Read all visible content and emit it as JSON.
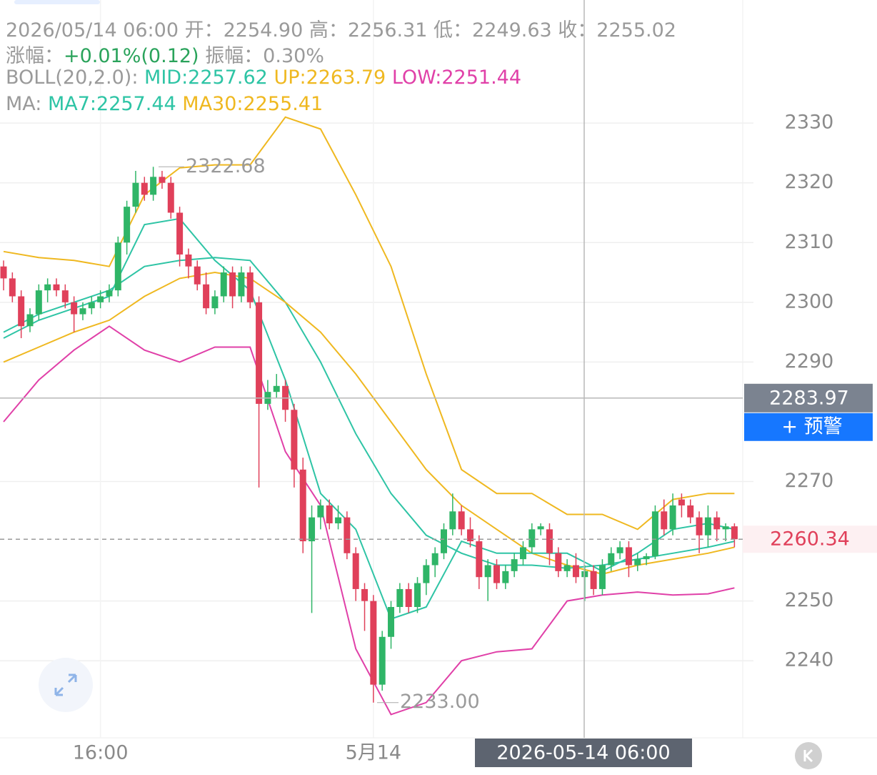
{
  "header": {
    "line1": "2026/05/14 06:00 开：2254.90 高：2256.31 低：2249.63 收：2255.02",
    "change_label": "涨幅：",
    "change": "+0.01%(0.12)",
    "amplitude": "振幅：0.30%",
    "boll": "BOLL(20,2.0):",
    "mid": "MID:2257.62",
    "up": "UP:2263.79",
    "low": "LOW:2251.44",
    "ma": "MA:",
    "ma7": "MA7:2257.44",
    "ma30": "MA30:2255.41"
  },
  "chart_data": {
    "type": "candlestick",
    "categories": [
      null,
      null,
      null,
      null,
      null,
      null,
      null,
      null,
      null,
      null,
      null,
      "16:00",
      null,
      null,
      null,
      null,
      null,
      null,
      null,
      null,
      null,
      null,
      null,
      null,
      null,
      null,
      null,
      null,
      null,
      null,
      null,
      null,
      null,
      null,
      null,
      null,
      null,
      null,
      null,
      null,
      null,
      null,
      "5月14",
      null,
      null,
      null,
      null,
      null,
      null,
      null,
      null,
      null,
      null,
      null,
      null,
      null,
      null,
      null,
      null,
      null,
      null,
      null,
      null,
      null,
      null,
      null,
      null,
      null,
      null,
      null,
      null,
      null,
      null,
      null,
      null,
      null,
      null,
      null,
      null,
      null,
      null,
      null,
      null,
      null
    ],
    "candles": [
      [
        2306,
        2307,
        2302,
        2304
      ],
      [
        2304,
        2305,
        2300,
        2301
      ],
      [
        2301,
        2302,
        2294,
        2296
      ],
      [
        2296,
        2299,
        2295,
        2298
      ],
      [
        2298,
        2303,
        2297,
        2302
      ],
      [
        2302,
        2304,
        2300,
        2303
      ],
      [
        2303,
        2304,
        2301,
        2302
      ],
      [
        2302,
        2303,
        2299,
        2300
      ],
      [
        2300,
        2301,
        2295,
        2298
      ],
      [
        2298,
        2300,
        2297,
        2299
      ],
      [
        2299,
        2301,
        2298,
        2300
      ],
      [
        2300,
        2302,
        2299,
        2301
      ],
      [
        2301,
        2303,
        2300,
        2302
      ],
      [
        2302,
        2311,
        2301,
        2310
      ],
      [
        2310,
        2317,
        2308,
        2316
      ],
      [
        2316,
        2322,
        2315,
        2320
      ],
      [
        2320,
        2321,
        2317,
        2318
      ],
      [
        2318,
        2322.68,
        2317,
        2321
      ],
      [
        2321,
        2322,
        2319,
        2320
      ],
      [
        2320,
        2321,
        2314,
        2315
      ],
      [
        2315,
        2316,
        2306,
        2308
      ],
      [
        2308,
        2309,
        2304,
        2306
      ],
      [
        2306,
        2307,
        2302,
        2303
      ],
      [
        2303,
        2305,
        2298,
        2299
      ],
      [
        2299,
        2302,
        2298,
        2301
      ],
      [
        2301,
        2306,
        2300,
        2305
      ],
      [
        2305,
        2306,
        2299,
        2301
      ],
      [
        2301,
        2306,
        2300,
        2305
      ],
      [
        2305,
        2306,
        2299,
        2300
      ],
      [
        2300,
        2301,
        2269,
        2283
      ],
      [
        2283,
        2287,
        2282,
        2285
      ],
      [
        2285,
        2288,
        2284,
        2286
      ],
      [
        2286,
        2287,
        2280,
        2282
      ],
      [
        2282,
        2283,
        2269,
        2272
      ],
      [
        2272,
        2274,
        2258,
        2260
      ],
      [
        2260,
        2266,
        2248,
        2264
      ],
      [
        2264,
        2267,
        2262,
        2266
      ],
      [
        2266,
        2267,
        2262,
        2263
      ],
      [
        2263,
        2266,
        2262,
        2264
      ],
      [
        2264,
        2265,
        2257,
        2258
      ],
      [
        2258,
        2259,
        2250,
        2252
      ],
      [
        2252,
        2253,
        2245,
        2250
      ],
      [
        2250,
        2251,
        2233,
        2236
      ],
      [
        2236,
        2245,
        2235,
        2244
      ],
      [
        2244,
        2250,
        2242,
        2249
      ],
      [
        2249,
        2253,
        2248,
        2252
      ],
      [
        2252,
        2253,
        2248,
        2249
      ],
      [
        2249,
        2254,
        2248,
        2253
      ],
      [
        2253,
        2257,
        2251,
        2256
      ],
      [
        2256,
        2259,
        2254,
        2258
      ],
      [
        2258,
        2263,
        2257,
        2262
      ],
      [
        2262,
        2268,
        2261,
        2265
      ],
      [
        2265,
        2266,
        2261,
        2262
      ],
      [
        2262,
        2264,
        2259,
        2260
      ],
      [
        2260,
        2261,
        2252,
        2254
      ],
      [
        2254,
        2257,
        2250,
        2256
      ],
      [
        2256,
        2257,
        2252,
        2253
      ],
      [
        2253,
        2256,
        2252,
        2255
      ],
      [
        2255,
        2258,
        2254,
        2257
      ],
      [
        2257,
        2260,
        2256,
        2259
      ],
      [
        2259,
        2263,
        2258,
        2262
      ],
      [
        2262,
        2263,
        2261,
        2262.5
      ],
      [
        2262,
        2263,
        2256,
        2258
      ],
      [
        2258,
        2259,
        2254,
        2255
      ],
      [
        2255,
        2257,
        2254,
        2256
      ],
      [
        2256,
        2258,
        2253,
        2254
      ],
      [
        2254,
        2256,
        2250,
        2255
      ],
      [
        2255,
        2256,
        2251,
        2252
      ],
      [
        2252,
        2257,
        2251,
        2256
      ],
      [
        2256,
        2259,
        2255,
        2258
      ],
      [
        2258,
        2260,
        2257,
        2259
      ],
      [
        2259,
        2260,
        2254,
        2256
      ],
      [
        2256,
        2258,
        2255,
        2257
      ],
      [
        2257,
        2258,
        2256,
        2257.5
      ],
      [
        2257.5,
        2266,
        2257,
        2265
      ],
      [
        2265,
        2267,
        2261,
        2262
      ],
      [
        2262,
        2268,
        2261,
        2266
      ],
      [
        2267,
        2268,
        2264,
        2266
      ],
      [
        2266,
        2267,
        2263,
        2264
      ],
      [
        2264,
        2265,
        2258,
        2261
      ],
      [
        2261,
        2266,
        2259,
        2264
      ],
      [
        2264,
        2265,
        2260,
        2262
      ],
      [
        2262,
        2263,
        2260,
        2262.5
      ],
      [
        2262.5,
        2263,
        2259,
        2260.34
      ]
    ],
    "up_color": "#2fb567",
    "down_color": "#e0405a",
    "line_index": [
      0,
      4,
      8,
      12,
      16,
      20,
      24,
      28,
      32,
      36,
      40,
      44,
      48,
      52,
      56,
      60,
      64,
      68,
      72,
      76,
      80,
      83
    ],
    "lines": [
      {
        "color": "#efb820",
        "values": [
          2308.5,
          2307.5,
          2307,
          2306,
          2318,
          2322.5,
          2323,
          2323,
          2331,
          2329,
          2318,
          2306,
          2288,
          2272,
          2268,
          2268,
          2264.5,
          2264.5,
          2262,
          2267,
          2268,
          2268
        ]
      },
      {
        "color": "#e040a8",
        "values": [
          2280,
          2287,
          2292,
          2296,
          2292,
          2290,
          2292.5,
          2292.5,
          2275,
          2266,
          2242,
          2231,
          2233,
          2240,
          2241.5,
          2242,
          2250,
          2251,
          2251.5,
          2251,
          2251.2,
          2252.2
        ]
      },
      {
        "color": "#2ec4a5",
        "values": [
          2295,
          2298,
          2300,
          2302,
          2306,
          2307,
          2307.5,
          2307,
          2300,
          2290,
          2278,
          2268,
          2261,
          2258,
          2256,
          2256,
          2255.5,
          2256,
          2257,
          2258,
          2259,
          2260
        ]
      },
      {
        "color": "#efb820",
        "values": [
          2290,
          2292.5,
          2295,
          2297,
          2301,
          2304,
          2305,
          2304,
          2300,
          2295,
          2288,
          2280,
          2272,
          2266,
          2262,
          2258,
          2256,
          2254.5,
          2256,
          2257,
          2258,
          2259
        ]
      },
      {
        "color": "#2ec4a5",
        "values": [
          2294,
          2297,
          2299,
          2301,
          2313,
          2314,
          2307,
          2302,
          2287,
          2268,
          2262,
          2247,
          2249,
          2260,
          2258,
          2258,
          2258,
          2255,
          2258,
          2262,
          2263,
          2262
        ]
      }
    ],
    "ylim": [
      2227.1,
      2350.6
    ],
    "yticks": [
      2240,
      2250,
      2270,
      2290,
      2300,
      2310,
      2320,
      2330
    ],
    "max_label": 2322.68,
    "min_label": {
      "value": 2233,
      "label": "2233.00"
    },
    "last_price": 2260.34,
    "crosshair_price": 2283.97,
    "crosshair_date": "2026-05-14 06:00",
    "alert": "+ 预警"
  }
}
